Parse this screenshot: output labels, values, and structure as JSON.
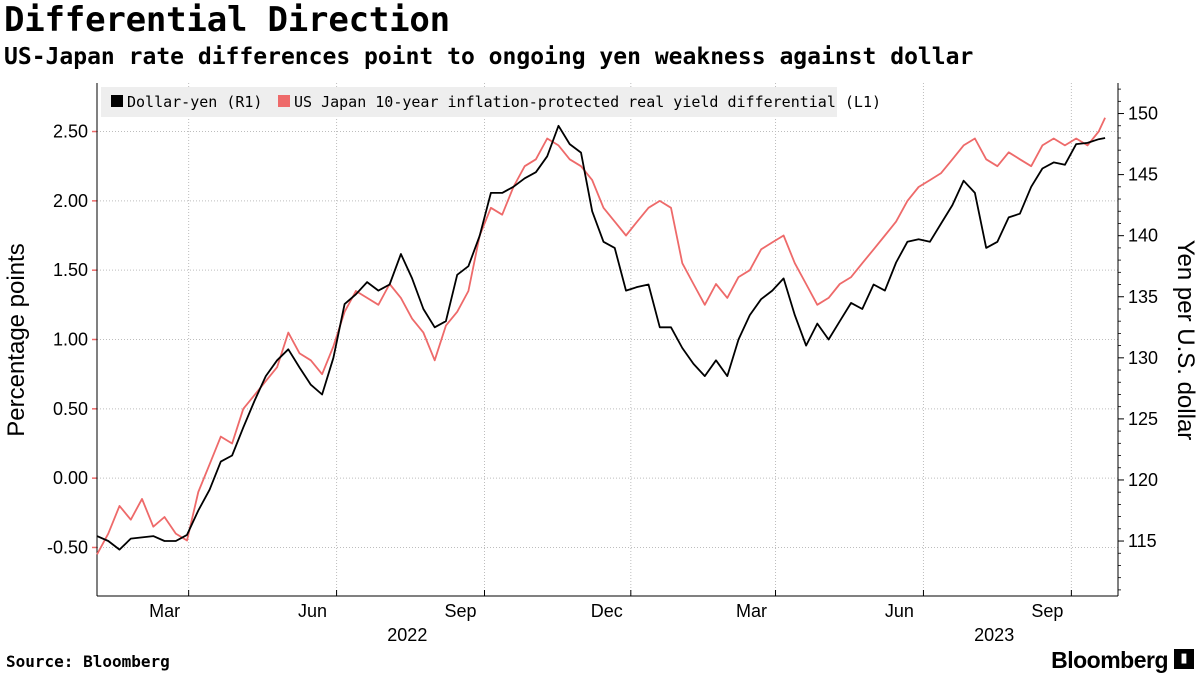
{
  "title": "Differential Direction",
  "subtitle": "US-Japan rate differences point to ongoing yen weakness against dollar",
  "source": "Source: Bloomberg",
  "brand": "Bloomberg",
  "chart_data": {
    "type": "line",
    "grid": true,
    "legend_position": "top-left",
    "colors": {
      "dollar_yen": "#000000",
      "real_yield_diff": "#ee6a6a"
    },
    "x_labels": [
      {
        "date": "2022-03-01",
        "label": "Mar"
      },
      {
        "date": "2022-06-01",
        "label": "Jun"
      },
      {
        "date": "2022-09-01",
        "label": "Sep"
      },
      {
        "date": "2022-12-01",
        "label": "Dec"
      },
      {
        "date": "2023-03-01",
        "label": "Mar"
      },
      {
        "date": "2023-06-01",
        "label": "Jun"
      },
      {
        "date": "2023-09-01",
        "label": "Sep"
      }
    ],
    "year_labels": [
      {
        "date": "2022-07-15",
        "label": "2022"
      },
      {
        "date": "2023-07-15",
        "label": "2023"
      }
    ],
    "xlim": [
      "2022-01-03",
      "2023-09-30"
    ],
    "left_axis": {
      "label": "Percentage points",
      "range": [
        -0.85,
        2.85
      ],
      "ticks": [
        -0.5,
        0,
        0.5,
        1,
        1.5,
        2,
        2.5
      ],
      "tick_labels": [
        "-0.50",
        "0.00",
        "0.50",
        "1.00",
        "1.50",
        "2.00",
        "2.50"
      ]
    },
    "right_axis": {
      "label": "Yen per U.S. dollar",
      "range": [
        110.5,
        152.5
      ],
      "ticks": [
        115,
        120,
        125,
        130,
        135,
        140,
        145,
        150
      ],
      "tick_labels": [
        "115",
        "120",
        "125",
        "130",
        "135",
        "140",
        "145",
        "150"
      ]
    },
    "series": [
      {
        "name": "Dollar-yen (R1)",
        "axis": "right",
        "points": [
          [
            "2022-01-03",
            115.4
          ],
          [
            "2022-01-10",
            115.0
          ],
          [
            "2022-01-17",
            114.3
          ],
          [
            "2022-01-24",
            115.2
          ],
          [
            "2022-01-31",
            115.3
          ],
          [
            "2022-02-07",
            115.4
          ],
          [
            "2022-02-14",
            115.0
          ],
          [
            "2022-02-21",
            115.0
          ],
          [
            "2022-02-28",
            115.5
          ],
          [
            "2022-03-07",
            117.5
          ],
          [
            "2022-03-14",
            119.2
          ],
          [
            "2022-03-21",
            121.5
          ],
          [
            "2022-03-28",
            122.0
          ],
          [
            "2022-04-04",
            124.3
          ],
          [
            "2022-04-11",
            126.5
          ],
          [
            "2022-04-18",
            128.5
          ],
          [
            "2022-04-25",
            129.8
          ],
          [
            "2022-05-02",
            130.7
          ],
          [
            "2022-05-09",
            129.2
          ],
          [
            "2022-05-16",
            127.8
          ],
          [
            "2022-05-23",
            127.0
          ],
          [
            "2022-05-30",
            130.0
          ],
          [
            "2022-06-06",
            134.4
          ],
          [
            "2022-06-13",
            135.2
          ],
          [
            "2022-06-20",
            136.2
          ],
          [
            "2022-06-27",
            135.5
          ],
          [
            "2022-07-04",
            136.0
          ],
          [
            "2022-07-11",
            138.5
          ],
          [
            "2022-07-18",
            136.5
          ],
          [
            "2022-07-25",
            134.0
          ],
          [
            "2022-08-01",
            132.5
          ],
          [
            "2022-08-08",
            133.0
          ],
          [
            "2022-08-15",
            136.8
          ],
          [
            "2022-08-22",
            137.5
          ],
          [
            "2022-08-29",
            140.0
          ],
          [
            "2022-09-05",
            143.5
          ],
          [
            "2022-09-12",
            143.5
          ],
          [
            "2022-09-19",
            144.0
          ],
          [
            "2022-09-26",
            144.7
          ],
          [
            "2022-10-03",
            145.2
          ],
          [
            "2022-10-10",
            146.5
          ],
          [
            "2022-10-17",
            149.0
          ],
          [
            "2022-10-24",
            147.5
          ],
          [
            "2022-10-31",
            146.8
          ],
          [
            "2022-11-07",
            142.0
          ],
          [
            "2022-11-14",
            139.5
          ],
          [
            "2022-11-21",
            139.0
          ],
          [
            "2022-11-28",
            135.5
          ],
          [
            "2022-12-05",
            135.8
          ],
          [
            "2022-12-12",
            136.0
          ],
          [
            "2022-12-19",
            132.5
          ],
          [
            "2022-12-26",
            132.5
          ],
          [
            "2023-01-02",
            130.8
          ],
          [
            "2023-01-09",
            129.5
          ],
          [
            "2023-01-16",
            128.5
          ],
          [
            "2023-01-23",
            129.8
          ],
          [
            "2023-01-30",
            128.5
          ],
          [
            "2023-02-06",
            131.5
          ],
          [
            "2023-02-13",
            133.5
          ],
          [
            "2023-02-20",
            134.8
          ],
          [
            "2023-02-27",
            135.5
          ],
          [
            "2023-03-06",
            136.5
          ],
          [
            "2023-03-13",
            133.5
          ],
          [
            "2023-03-20",
            131.0
          ],
          [
            "2023-03-27",
            132.8
          ],
          [
            "2023-04-03",
            131.5
          ],
          [
            "2023-04-10",
            133.0
          ],
          [
            "2023-04-17",
            134.5
          ],
          [
            "2023-04-24",
            134.0
          ],
          [
            "2023-05-01",
            136.0
          ],
          [
            "2023-05-08",
            135.5
          ],
          [
            "2023-05-15",
            137.8
          ],
          [
            "2023-05-22",
            139.5
          ],
          [
            "2023-05-29",
            139.7
          ],
          [
            "2023-06-05",
            139.5
          ],
          [
            "2023-06-12",
            141.0
          ],
          [
            "2023-06-19",
            142.5
          ],
          [
            "2023-06-26",
            144.5
          ],
          [
            "2023-07-03",
            143.5
          ],
          [
            "2023-07-10",
            139.0
          ],
          [
            "2023-07-17",
            139.5
          ],
          [
            "2023-07-24",
            141.5
          ],
          [
            "2023-07-31",
            141.8
          ],
          [
            "2023-08-07",
            144.0
          ],
          [
            "2023-08-14",
            145.5
          ],
          [
            "2023-08-21",
            146.0
          ],
          [
            "2023-08-28",
            145.8
          ],
          [
            "2023-09-04",
            147.5
          ],
          [
            "2023-09-11",
            147.6
          ],
          [
            "2023-09-18",
            147.9
          ],
          [
            "2023-09-22",
            148.0
          ]
        ]
      },
      {
        "name": "US Japan 10-year inflation-protected real yield differential (L1)",
        "axis": "left",
        "points": [
          [
            "2022-01-03",
            -0.55
          ],
          [
            "2022-01-10",
            -0.4
          ],
          [
            "2022-01-17",
            -0.2
          ],
          [
            "2022-01-24",
            -0.3
          ],
          [
            "2022-01-31",
            -0.15
          ],
          [
            "2022-02-07",
            -0.35
          ],
          [
            "2022-02-14",
            -0.28
          ],
          [
            "2022-02-21",
            -0.4
          ],
          [
            "2022-02-28",
            -0.45
          ],
          [
            "2022-03-07",
            -0.1
          ],
          [
            "2022-03-14",
            0.1
          ],
          [
            "2022-03-21",
            0.3
          ],
          [
            "2022-03-28",
            0.25
          ],
          [
            "2022-04-04",
            0.5
          ],
          [
            "2022-04-11",
            0.6
          ],
          [
            "2022-04-18",
            0.7
          ],
          [
            "2022-04-25",
            0.8
          ],
          [
            "2022-05-02",
            1.05
          ],
          [
            "2022-05-09",
            0.9
          ],
          [
            "2022-05-16",
            0.85
          ],
          [
            "2022-05-23",
            0.75
          ],
          [
            "2022-05-30",
            0.95
          ],
          [
            "2022-06-06",
            1.2
          ],
          [
            "2022-06-13",
            1.35
          ],
          [
            "2022-06-20",
            1.3
          ],
          [
            "2022-06-27",
            1.25
          ],
          [
            "2022-07-04",
            1.4
          ],
          [
            "2022-07-11",
            1.3
          ],
          [
            "2022-07-18",
            1.15
          ],
          [
            "2022-07-25",
            1.05
          ],
          [
            "2022-08-01",
            0.85
          ],
          [
            "2022-08-08",
            1.1
          ],
          [
            "2022-08-15",
            1.2
          ],
          [
            "2022-08-22",
            1.35
          ],
          [
            "2022-08-29",
            1.75
          ],
          [
            "2022-09-05",
            1.95
          ],
          [
            "2022-09-12",
            1.9
          ],
          [
            "2022-09-19",
            2.1
          ],
          [
            "2022-09-26",
            2.25
          ],
          [
            "2022-10-03",
            2.3
          ],
          [
            "2022-10-10",
            2.45
          ],
          [
            "2022-10-17",
            2.4
          ],
          [
            "2022-10-24",
            2.3
          ],
          [
            "2022-10-31",
            2.25
          ],
          [
            "2022-11-07",
            2.15
          ],
          [
            "2022-11-14",
            1.95
          ],
          [
            "2022-11-21",
            1.85
          ],
          [
            "2022-11-28",
            1.75
          ],
          [
            "2022-12-05",
            1.85
          ],
          [
            "2022-12-12",
            1.95
          ],
          [
            "2022-12-19",
            2.0
          ],
          [
            "2022-12-26",
            1.95
          ],
          [
            "2023-01-02",
            1.55
          ],
          [
            "2023-01-09",
            1.4
          ],
          [
            "2023-01-16",
            1.25
          ],
          [
            "2023-01-23",
            1.4
          ],
          [
            "2023-01-30",
            1.3
          ],
          [
            "2023-02-06",
            1.45
          ],
          [
            "2023-02-13",
            1.5
          ],
          [
            "2023-02-20",
            1.65
          ],
          [
            "2023-02-27",
            1.7
          ],
          [
            "2023-03-06",
            1.75
          ],
          [
            "2023-03-13",
            1.55
          ],
          [
            "2023-03-20",
            1.4
          ],
          [
            "2023-03-27",
            1.25
          ],
          [
            "2023-04-03",
            1.3
          ],
          [
            "2023-04-10",
            1.4
          ],
          [
            "2023-04-17",
            1.45
          ],
          [
            "2023-04-24",
            1.55
          ],
          [
            "2023-05-01",
            1.65
          ],
          [
            "2023-05-08",
            1.75
          ],
          [
            "2023-05-15",
            1.85
          ],
          [
            "2023-05-22",
            2.0
          ],
          [
            "2023-05-29",
            2.1
          ],
          [
            "2023-06-05",
            2.15
          ],
          [
            "2023-06-12",
            2.2
          ],
          [
            "2023-06-19",
            2.3
          ],
          [
            "2023-06-26",
            2.4
          ],
          [
            "2023-07-03",
            2.45
          ],
          [
            "2023-07-10",
            2.3
          ],
          [
            "2023-07-17",
            2.25
          ],
          [
            "2023-07-24",
            2.35
          ],
          [
            "2023-07-31",
            2.3
          ],
          [
            "2023-08-07",
            2.25
          ],
          [
            "2023-08-14",
            2.4
          ],
          [
            "2023-08-21",
            2.45
          ],
          [
            "2023-08-28",
            2.4
          ],
          [
            "2023-09-04",
            2.45
          ],
          [
            "2023-09-11",
            2.4
          ],
          [
            "2023-09-18",
            2.5
          ],
          [
            "2023-09-22",
            2.6
          ]
        ]
      }
    ]
  }
}
